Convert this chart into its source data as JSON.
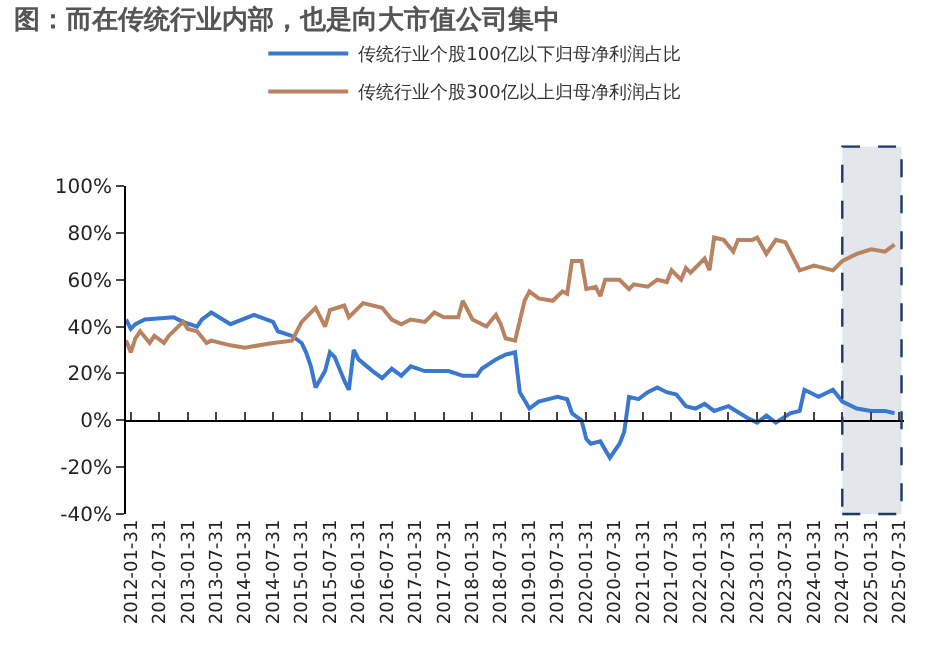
{
  "chart_data": {
    "type": "line",
    "title": "图：而在传统行业内部，也是向大市值公司集中",
    "series": [
      {
        "name": "传统行业个股100亿以下归母净利润占比",
        "color": "#3a78d0",
        "x": [
          "2012-01",
          "2012-02",
          "2012-03",
          "2012-05",
          "2012-11",
          "2013-01",
          "2013-04",
          "2013-05",
          "2013-07",
          "2013-11",
          "2014-04",
          "2014-08",
          "2014-09",
          "2014-12",
          "2015-02",
          "2015-03",
          "2015-04",
          "2015-05",
          "2015-07",
          "2015-08",
          "2015-09",
          "2015-11",
          "2015-12",
          "2016-01",
          "2016-02",
          "2016-05",
          "2016-07",
          "2016-09",
          "2016-11",
          "2017-01",
          "2017-04",
          "2017-07",
          "2017-09",
          "2017-12",
          "2018-03",
          "2018-04",
          "2018-07",
          "2018-09",
          "2018-11",
          "2018-12",
          "2019-02",
          "2019-04",
          "2019-08",
          "2019-10",
          "2019-11",
          "2020-01",
          "2020-02",
          "2020-03",
          "2020-05",
          "2020-07",
          "2020-09",
          "2020-10",
          "2020-11",
          "2021-01",
          "2021-03",
          "2021-05",
          "2021-07",
          "2021-09",
          "2021-11",
          "2022-01",
          "2022-03",
          "2022-05",
          "2022-08",
          "2022-12",
          "2023-02",
          "2023-04",
          "2023-06",
          "2023-09",
          "2023-11",
          "2023-12",
          "2024-03",
          "2024-06",
          "2024-08",
          "2024-11",
          "2025-02",
          "2025-05",
          "2025-07"
        ],
        "values": [
          43,
          39,
          41,
          43,
          44,
          42,
          40,
          43,
          46,
          41,
          45,
          42,
          38,
          36,
          33,
          29,
          23,
          14,
          21,
          29,
          27,
          17,
          13,
          30,
          26,
          21,
          18,
          22,
          19,
          23,
          21,
          21,
          21,
          19,
          19,
          22,
          26,
          28,
          29,
          12,
          5,
          8,
          10,
          9,
          3,
          0,
          -8,
          -10,
          -9,
          -16,
          -10,
          -5,
          10,
          9,
          12,
          14,
          12,
          11,
          6,
          5,
          7,
          4,
          6,
          1,
          -1,
          2,
          -1,
          3,
          4,
          13,
          10,
          13,
          8,
          5,
          4,
          4,
          3
        ]
      },
      {
        "name": "传统行业个股300亿以上归母净利润占比",
        "color": "#b98261",
        "x": [
          "2012-01",
          "2012-02",
          "2012-03",
          "2012-04",
          "2012-06",
          "2012-07",
          "2012-09",
          "2012-10",
          "2013-01",
          "2013-02",
          "2013-04",
          "2013-06",
          "2013-07",
          "2013-11",
          "2014-02",
          "2014-08",
          "2014-12",
          "2015-02",
          "2015-05",
          "2015-07",
          "2015-08",
          "2015-11",
          "2015-12",
          "2016-03",
          "2016-07",
          "2016-09",
          "2016-11",
          "2017-01",
          "2017-04",
          "2017-06",
          "2017-08",
          "2017-11",
          "2017-12",
          "2018-02",
          "2018-05",
          "2018-07",
          "2018-08",
          "2018-09",
          "2018-11",
          "2019-01",
          "2019-02",
          "2019-04",
          "2019-07",
          "2019-09",
          "2019-10",
          "2019-11",
          "2020-01",
          "2020-02",
          "2020-04",
          "2020-05",
          "2020-06",
          "2020-09",
          "2020-11",
          "2020-12",
          "2021-03",
          "2021-05",
          "2021-07",
          "2021-08",
          "2021-10",
          "2021-11",
          "2021-12",
          "2022-03",
          "2022-04",
          "2022-05",
          "2022-07",
          "2022-09",
          "2022-10",
          "2023-01",
          "2023-02",
          "2023-04",
          "2023-06",
          "2023-08",
          "2023-09",
          "2023-11",
          "2024-02",
          "2024-06",
          "2024-08",
          "2024-11",
          "2025-02",
          "2025-05",
          "2025-07"
        ],
        "values": [
          34,
          29,
          35,
          38,
          33,
          36,
          33,
          36,
          42,
          39,
          38,
          33,
          34,
          32,
          31,
          33,
          34,
          42,
          48,
          40,
          47,
          49,
          44,
          50,
          48,
          43,
          41,
          43,
          42,
          46,
          44,
          44,
          51,
          43,
          40,
          45,
          41,
          35,
          34,
          51,
          55,
          52,
          51,
          55,
          54,
          68,
          68,
          56,
          57,
          53,
          60,
          60,
          56,
          58,
          57,
          60,
          59,
          64,
          60,
          65,
          63,
          69,
          64,
          78,
          77,
          72,
          77,
          77,
          78,
          71,
          77,
          76,
          72,
          64,
          66,
          64,
          68,
          71,
          73,
          72,
          75
        ]
      }
    ],
    "xlim": [
      "2012-01-01",
      "2025-08-31"
    ],
    "xticks": [
      "2012-01-31",
      "2012-07-31",
      "2013-01-31",
      "2013-07-31",
      "2014-01-31",
      "2014-07-31",
      "2015-01-31",
      "2015-07-31",
      "2016-01-31",
      "2016-07-31",
      "2017-01-31",
      "2017-07-31",
      "2018-01-31",
      "2018-07-31",
      "2019-01-31",
      "2019-07-31",
      "2020-01-31",
      "2020-07-31",
      "2021-01-31",
      "2021-07-31",
      "2022-01-31",
      "2022-07-31",
      "2023-01-31",
      "2023-07-31",
      "2024-01-31",
      "2024-07-31",
      "2025-01-31",
      "2025-07-31"
    ],
    "ylim": [
      -40,
      100
    ],
    "yticks": [
      {
        "value": -40,
        "label": "-40%"
      },
      {
        "value": -20,
        "label": "-20%"
      },
      {
        "value": 0,
        "label": "0%"
      },
      {
        "value": 20,
        "label": "20%"
      },
      {
        "value": 40,
        "label": "40%"
      },
      {
        "value": 60,
        "label": "60%"
      },
      {
        "value": 80,
        "label": "80%"
      },
      {
        "value": 100,
        "label": "100%"
      }
    ],
    "bands": [
      {
        "axis": "x",
        "from": "2024-07-31",
        "to": "2025-08-15",
        "color": "#1f3864"
      }
    ],
    "ref_lines": [
      {
        "axis": "y",
        "value": 0,
        "color": "#000000"
      }
    ],
    "grid": false,
    "legend": "top",
    "marker": "none",
    "line_style": "solid"
  }
}
